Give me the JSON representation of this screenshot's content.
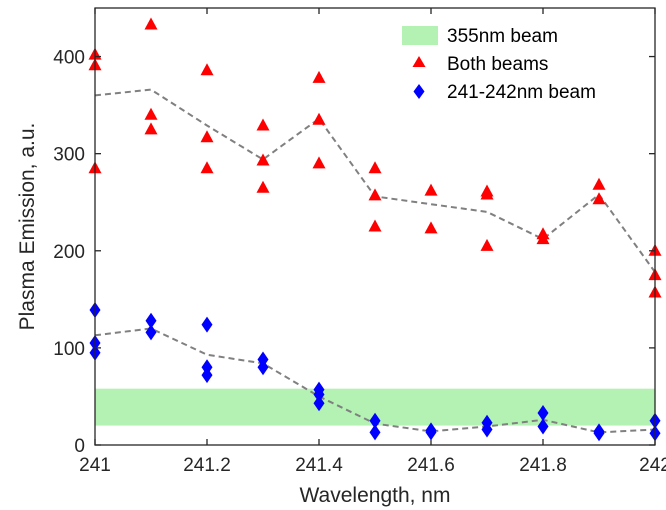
{
  "chart_data": {
    "type": "scatter",
    "xlabel": "Wavelength, nm",
    "ylabel": "Plasma Emission, a.u.",
    "xlim": [
      241,
      242
    ],
    "ylim": [
      0,
      450
    ],
    "x_ticks": [
      241,
      241.2,
      241.4,
      241.6,
      241.8,
      242
    ],
    "x_tick_labels": [
      "241",
      "241.2",
      "241.4",
      "241.6",
      "241.8",
      "242"
    ],
    "y_ticks": [
      0,
      100,
      200,
      300,
      400
    ],
    "y_tick_labels": [
      "0",
      "100",
      "200",
      "300",
      "400"
    ],
    "grid": false,
    "legend_position": "top-right",
    "band": {
      "name": "355nm beam",
      "y_range": [
        20,
        58
      ],
      "color": "#b3f2b3"
    },
    "series": [
      {
        "name": "Both beams",
        "marker": "triangle",
        "color": "#ff0000",
        "points": [
          [
            241.0,
            402
          ],
          [
            241.0,
            391
          ],
          [
            241.0,
            285
          ],
          [
            241.1,
            433
          ],
          [
            241.1,
            340
          ],
          [
            241.1,
            325
          ],
          [
            241.2,
            386
          ],
          [
            241.2,
            317
          ],
          [
            241.2,
            285
          ],
          [
            241.3,
            329
          ],
          [
            241.3,
            293
          ],
          [
            241.3,
            265
          ],
          [
            241.4,
            378
          ],
          [
            241.4,
            335
          ],
          [
            241.4,
            290
          ],
          [
            241.5,
            285
          ],
          [
            241.5,
            257
          ],
          [
            241.5,
            225
          ],
          [
            241.6,
            262
          ],
          [
            241.6,
            223
          ],
          [
            241.7,
            261
          ],
          [
            241.7,
            258
          ],
          [
            241.7,
            205
          ],
          [
            241.8,
            217
          ],
          [
            241.8,
            212
          ],
          [
            241.9,
            268
          ],
          [
            241.9,
            253
          ],
          [
            242.0,
            200
          ],
          [
            242.0,
            175
          ],
          [
            242.0,
            157
          ]
        ],
        "mean_line": {
          "x": [
            241.0,
            241.1,
            241.2,
            241.3,
            241.4,
            241.5,
            241.6,
            241.7,
            241.8,
            241.9,
            242.0
          ],
          "y": [
            360,
            366,
            329,
            294,
            336,
            256,
            248,
            240,
            212,
            258,
            178
          ]
        }
      },
      {
        "name": "241-242nm beam",
        "marker": "diamond",
        "color": "#0000ff",
        "points": [
          [
            241.0,
            139
          ],
          [
            241.0,
            105
          ],
          [
            241.0,
            95
          ],
          [
            241.1,
            128
          ],
          [
            241.1,
            116
          ],
          [
            241.2,
            124
          ],
          [
            241.2,
            80
          ],
          [
            241.2,
            72
          ],
          [
            241.3,
            88
          ],
          [
            241.3,
            80
          ],
          [
            241.4,
            57
          ],
          [
            241.4,
            52
          ],
          [
            241.4,
            43
          ],
          [
            241.5,
            25
          ],
          [
            241.5,
            13
          ],
          [
            241.6,
            15
          ],
          [
            241.6,
            13
          ],
          [
            241.7,
            23
          ],
          [
            241.7,
            16
          ],
          [
            241.8,
            33
          ],
          [
            241.8,
            19
          ],
          [
            241.9,
            14
          ],
          [
            241.9,
            12
          ],
          [
            242.0,
            25
          ],
          [
            242.0,
            12
          ]
        ],
        "mean_line": {
          "x": [
            241.0,
            241.1,
            241.2,
            241.3,
            241.4,
            241.5,
            241.6,
            241.7,
            241.8,
            241.9,
            242.0
          ],
          "y": [
            113,
            120,
            93,
            84,
            50,
            22,
            14,
            19,
            26,
            13,
            16
          ]
        }
      }
    ],
    "mean_line_color": "#808080"
  }
}
